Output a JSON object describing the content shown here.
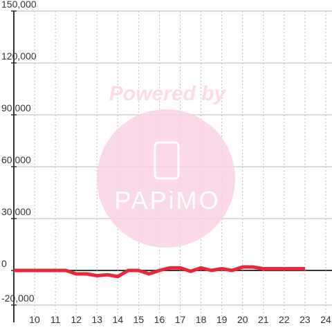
{
  "chart_data": {
    "type": "line",
    "watermark": {
      "title": "Powered by",
      "brand": "PAPiMO"
    },
    "x": [
      9,
      9.5,
      10,
      10.5,
      11,
      11.5,
      12,
      12.5,
      13,
      13.5,
      14,
      14.5,
      15,
      15.5,
      16,
      16.5,
      17,
      17.5,
      18,
      18.5,
      19,
      19.5,
      20,
      20.5,
      21,
      21.5,
      22,
      22.5,
      23
    ],
    "series": [
      {
        "color": "#e8273b",
        "values": [
          0,
          0,
          0,
          0,
          0,
          0,
          -2000,
          -2000,
          -3000,
          -2500,
          -3500,
          0,
          0,
          -2000,
          0,
          1500,
          1500,
          -500,
          1500,
          0,
          1000,
          0,
          2000,
          2000,
          1000,
          1000,
          1000,
          1000,
          1000
        ]
      }
    ],
    "xlim": [
      9,
      24.3
    ],
    "xticks": [
      10,
      11,
      12,
      13,
      14,
      15,
      16,
      17,
      18,
      19,
      20,
      21,
      22,
      23,
      24
    ],
    "ylim": [
      -30000,
      150000
    ],
    "yticks": [
      {
        "value": 150000,
        "label": "150,000"
      },
      {
        "value": 120000,
        "label": "120,000"
      },
      {
        "value": 90000,
        "label": "90,000"
      },
      {
        "value": 60000,
        "label": "60,000"
      },
      {
        "value": 30000,
        "label": "30,000"
      },
      0,
      {
        "value": -20000,
        "label": "-20,000"
      }
    ],
    "grid": true
  }
}
